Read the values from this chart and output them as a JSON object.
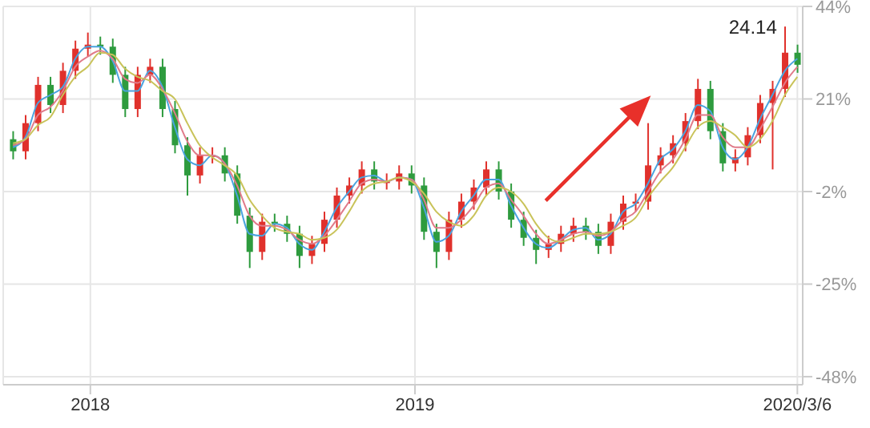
{
  "chart_data": {
    "type": "candlestick",
    "x": [
      "2017-10-06",
      "2017-10-20",
      "2017-11-03",
      "2017-11-17",
      "2017-12-01",
      "2017-12-15",
      "2017-12-29",
      "2018-01-12",
      "2018-01-26",
      "2018-02-09",
      "2018-02-23",
      "2018-03-09",
      "2018-03-23",
      "2018-04-06",
      "2018-04-20",
      "2018-05-04",
      "2018-05-18",
      "2018-06-01",
      "2018-06-15",
      "2018-06-29",
      "2018-07-13",
      "2018-07-27",
      "2018-08-10",
      "2018-08-24",
      "2018-09-07",
      "2018-09-21",
      "2018-10-05",
      "2018-10-19",
      "2018-11-02",
      "2018-11-16",
      "2018-11-30",
      "2018-12-14",
      "2018-12-28",
      "2019-01-11",
      "2019-01-25",
      "2019-02-08",
      "2019-02-22",
      "2019-03-08",
      "2019-03-22",
      "2019-04-05",
      "2019-04-19",
      "2019-05-03",
      "2019-05-17",
      "2019-05-31",
      "2019-06-14",
      "2019-06-28",
      "2019-07-12",
      "2019-07-26",
      "2019-08-09",
      "2019-08-23",
      "2019-09-06",
      "2019-09-20",
      "2019-10-04",
      "2019-10-18",
      "2019-11-01",
      "2019-11-15",
      "2019-11-29",
      "2019-12-13",
      "2019-12-27",
      "2020-01-10",
      "2020-01-24",
      "2020-02-07",
      "2020-02-21",
      "2020-03-06"
    ],
    "ohlc": [
      [
        11,
        13,
        6,
        8
      ],
      [
        8,
        17,
        6,
        15
      ],
      [
        15,
        26.5,
        13,
        24.5
      ],
      [
        24.5,
        26.5,
        17.5,
        19.5
      ],
      [
        19.5,
        30,
        17.5,
        28
      ],
      [
        28,
        35.5,
        26,
        33.5
      ],
      [
        33.5,
        37.5,
        31.5,
        34.5
      ],
      [
        34.5,
        36.5,
        32,
        34
      ],
      [
        34,
        36,
        25,
        27
      ],
      [
        27,
        29,
        16.5,
        18.5
      ],
      [
        18.5,
        29,
        16.5,
        27
      ],
      [
        27,
        31,
        25,
        29
      ],
      [
        29,
        31,
        16.5,
        18.5
      ],
      [
        18.5,
        20.5,
        7.5,
        9.5
      ],
      [
        9.5,
        11.5,
        -3,
        2
      ],
      [
        2,
        9,
        0,
        7
      ],
      [
        7,
        9,
        5,
        7
      ],
      [
        7,
        9,
        0.5,
        2.5
      ],
      [
        2.5,
        4.5,
        -10,
        -8
      ],
      [
        -8,
        -6,
        -21,
        -17
      ],
      [
        -17,
        -7.5,
        -19,
        -9.5
      ],
      [
        -9.5,
        -7.5,
        -12,
        -10
      ],
      [
        -10,
        -8,
        -14.5,
        -12.5
      ],
      [
        -12.5,
        -10.5,
        -21,
        -18
      ],
      [
        -18,
        -13,
        -20,
        -15
      ],
      [
        -15,
        -7,
        -17,
        -9
      ],
      [
        -9,
        -1,
        -11,
        -3
      ],
      [
        -3,
        1.5,
        -5,
        -0.5
      ],
      [
        -0.5,
        5.5,
        -2.5,
        3.5
      ],
      [
        3.5,
        5.5,
        -1.5,
        0.5
      ],
      [
        0.5,
        2.5,
        -1.5,
        0.5
      ],
      [
        0.5,
        4.5,
        -1.5,
        2.5
      ],
      [
        2.5,
        4.5,
        -2.5,
        -0.5
      ],
      [
        -0.5,
        1.5,
        -14,
        -12
      ],
      [
        -12,
        -10,
        -21,
        -17
      ],
      [
        -17,
        -7,
        -19,
        -9
      ],
      [
        -9,
        -2.5,
        -11,
        -4.5
      ],
      [
        -4.5,
        1,
        -6.5,
        -1
      ],
      [
        -1,
        5.5,
        -3,
        3.5
      ],
      [
        3.5,
        5.5,
        -4,
        -2
      ],
      [
        -2,
        0,
        -11,
        -9
      ],
      [
        -9,
        -7,
        -15.5,
        -13.5
      ],
      [
        -13.5,
        -11.5,
        -20,
        -16.5
      ],
      [
        -16.5,
        -13,
        -18.5,
        -15
      ],
      [
        -15,
        -10.5,
        -17,
        -12.5
      ],
      [
        -12.5,
        -8.5,
        -14.5,
        -10.5
      ],
      [
        -10.5,
        -8.5,
        -14,
        -12
      ],
      [
        -12,
        -10,
        -17.5,
        -15.5
      ],
      [
        -15.5,
        -7.5,
        -17.5,
        -9.5
      ],
      [
        -9.5,
        -3,
        -11.5,
        -5
      ],
      [
        -5,
        -2.5,
        -7,
        -4.5
      ],
      [
        -4.5,
        15,
        -6.5,
        4.5
      ],
      [
        4.5,
        9,
        2.5,
        7
      ],
      [
        7,
        12,
        5,
        10
      ],
      [
        10,
        17.5,
        8,
        15.5
      ],
      [
        15.5,
        26,
        13.5,
        23.5
      ],
      [
        23.5,
        25.5,
        11,
        13
      ],
      [
        13,
        15,
        3,
        5
      ],
      [
        5,
        8.5,
        3,
        6.5
      ],
      [
        6.5,
        14,
        4.5,
        12
      ],
      [
        12,
        22,
        10,
        20
      ],
      [
        20,
        25.5,
        3.5,
        23.5
      ],
      [
        23.5,
        39,
        21.5,
        32.5
      ],
      [
        32.5,
        34.5,
        27.5,
        29.5
      ]
    ],
    "colors": [
      "#2e9b3e",
      "#e0312c",
      "#e0312c",
      "#2e9b3e",
      "#e0312c",
      "#e0312c",
      "#e0312c",
      "#2e9b3e",
      "#2e9b3e",
      "#2e9b3e",
      "#e0312c",
      "#e0312c",
      "#2e9b3e",
      "#2e9b3e",
      "#2e9b3e",
      "#e0312c",
      "#e0312c",
      "#2e9b3e",
      "#2e9b3e",
      "#2e9b3e",
      "#e0312c",
      "#2e9b3e",
      "#2e9b3e",
      "#2e9b3e",
      "#e0312c",
      "#e0312c",
      "#e0312c",
      "#e0312c",
      "#e0312c",
      "#2e9b3e",
      "#e0312c",
      "#e0312c",
      "#2e9b3e",
      "#2e9b3e",
      "#2e9b3e",
      "#e0312c",
      "#e0312c",
      "#e0312c",
      "#e0312c",
      "#2e9b3e",
      "#2e9b3e",
      "#2e9b3e",
      "#2e9b3e",
      "#e0312c",
      "#e0312c",
      "#e0312c",
      "#2e9b3e",
      "#2e9b3e",
      "#e0312c",
      "#e0312c",
      "#e0312c",
      "#e0312c",
      "#e0312c",
      "#e0312c",
      "#e0312c",
      "#e0312c",
      "#2e9b3e",
      "#2e9b3e",
      "#e0312c",
      "#e0312c",
      "#e0312c",
      "#e0312c",
      "#e0312c",
      "#2e9b3e"
    ],
    "series": [
      {
        "type": "line",
        "color": "#4aa3df",
        "values": [
          9,
          11.5,
          20,
          22,
          24,
          31,
          34,
          34,
          30.5,
          23,
          23,
          28,
          24,
          14,
          6,
          4.5,
          7,
          5,
          -3,
          -12.5,
          -13,
          -10,
          -11,
          -15,
          -16.5,
          -12,
          -6,
          -2,
          1.5,
          2,
          0.5,
          1.5,
          1,
          -6,
          -14.5,
          -13,
          -7,
          -3,
          1,
          1,
          -5.5,
          -11,
          -15,
          -16,
          -14,
          -11.5,
          -11,
          -14,
          -12.5,
          -7,
          -5,
          0,
          6,
          8.5,
          13,
          19.5,
          18,
          9,
          6,
          9,
          16,
          22,
          28,
          31
        ]
      },
      {
        "type": "line",
        "color": "#e07b8a",
        "values": [
          9.5,
          11,
          17,
          19,
          23,
          29,
          31.5,
          33,
          31,
          26,
          25,
          27,
          23.5,
          17.5,
          10.5,
          7,
          7,
          5,
          -0.5,
          -8,
          -10.5,
          -10.5,
          -11.5,
          -14,
          -15,
          -13,
          -9,
          -4.5,
          0,
          1,
          0.5,
          1.5,
          1,
          -4,
          -11,
          -11,
          -9,
          -5.5,
          -1,
          0,
          -4,
          -8,
          -12.5,
          -15,
          -14,
          -12.5,
          -12,
          -13,
          -12,
          -9,
          -7,
          -2,
          3,
          6,
          11,
          17,
          17,
          11.5,
          9,
          9,
          13.5,
          19,
          25,
          29
        ]
      },
      {
        "type": "line",
        "color": "#c9c35a",
        "values": [
          10,
          11,
          14.5,
          16.5,
          22,
          26.5,
          29,
          32.5,
          32,
          28.5,
          26.5,
          25.5,
          23,
          21,
          15,
          9.5,
          6.5,
          4.5,
          2,
          -4,
          -8,
          -11,
          -12,
          -12.5,
          -14,
          -13.5,
          -11.5,
          -7,
          -2,
          0,
          0.5,
          1.5,
          0.5,
          -2.5,
          -7,
          -9.5,
          -10.5,
          -8,
          -3,
          -1,
          -2,
          -5,
          -10,
          -13.5,
          -14.5,
          -13.5,
          -12.5,
          -12.5,
          -12,
          -10.5,
          -8.5,
          -3.5,
          0.5,
          4,
          9,
          14,
          15.5,
          14,
          12,
          9,
          11,
          15.5,
          22,
          26.5
        ]
      }
    ],
    "xlim": [
      "2017-09-25",
      "2020-03-12"
    ],
    "xticks": [
      {
        "value": "2018-01-01",
        "label": "2018"
      },
      {
        "value": "2019-01-01",
        "label": "2019"
      },
      {
        "value": "2020-03-06",
        "label": "2020/3/6"
      }
    ],
    "ylim": [
      -50,
      44
    ],
    "yticks": [
      {
        "value": -48,
        "label": "-48%"
      },
      {
        "value": -25,
        "label": "-25%"
      },
      {
        "value": -2,
        "label": "-2%"
      },
      {
        "value": 21,
        "label": "21%"
      },
      {
        "value": 44,
        "label": "44%"
      }
    ],
    "annotations": [
      {
        "text": "24.14",
        "x": "2020-02-21",
        "y": 39
      }
    ],
    "grid": true,
    "marker": "none"
  }
}
